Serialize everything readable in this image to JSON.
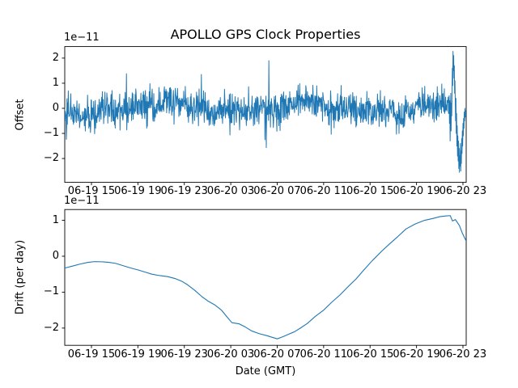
{
  "figure": {
    "background": "#ffffff",
    "frame_color": "#000000",
    "accent_line_color": "#1f77b4"
  },
  "chart_data": [
    {
      "type": "line",
      "title": "APOLLO GPS Clock Properties",
      "ylabel": "Offset",
      "xlabel": "",
      "offset_text": "1e−11",
      "unit_scale": "1e-11",
      "line_color": "#1f77b4",
      "ylim": [
        -2.95,
        2.46
      ],
      "ytick_values": [
        2,
        1,
        0,
        -1,
        -2
      ],
      "ytick_labels": [
        "2",
        "1",
        "0",
        "−1",
        "−2"
      ],
      "xlim_hours": [
        12.7,
        47.28
      ],
      "xtick_hours": [
        15,
        19,
        23,
        27,
        31,
        35,
        39,
        43,
        47
      ],
      "xtick_labels": [
        "06-19 15",
        "06-19 19",
        "06-19 23",
        "06-20 03",
        "06-20 07",
        "06-20 11",
        "06-20 15",
        "06-20 19",
        "06-20 23"
      ],
      "grid": false,
      "legend": null,
      "series": {
        "name": "clock-offset-noise",
        "style": "dense-noise",
        "n_points": 1250,
        "mean": 0,
        "std": 0.34,
        "typical_band": [
          -0.8,
          0.9
        ],
        "excursion_extremes": [
          -1.9,
          1.9
        ],
        "excursion_probability": 0.03,
        "wander_amplitudes": [
          0.16,
          0.1,
          0.07
        ],
        "wander_cycles": [
          2.7,
          6.3,
          13
        ],
        "tail_values": [
          -0.2,
          0.5,
          -0.6,
          0.3,
          -1.3,
          -0.4,
          0.6,
          -0.9,
          0.2,
          -0.3,
          0.8,
          1.6,
          0.9,
          2.27,
          1.5,
          2.1,
          1.2,
          1.7,
          0.6,
          1.1,
          0.3,
          -0.5,
          0.4,
          -1.0,
          -0.2,
          -1.5,
          -0.7,
          -1.9,
          -1.1,
          -2.1,
          -1.3,
          -2.4,
          -1.6,
          -2.55,
          -1.9,
          -2.3,
          -1.4,
          -2.5,
          -1.7,
          -2.2,
          -1.2,
          -1.8,
          -0.9,
          -1.5,
          -0.6,
          -1.1,
          -0.4,
          -0.8,
          -0.15,
          -0.5,
          0.0,
          -0.35,
          -0.1,
          -0.3,
          -0.12
        ],
        "end_spike_max": 2.27,
        "end_dip_min": -2.55
      }
    },
    {
      "type": "line",
      "title": "",
      "ylabel": "Drift (per day)",
      "xlabel": "Date (GMT)",
      "offset_text": "1e−11",
      "unit_scale": "1e-11",
      "line_color": "#1f77b4",
      "ylim": [
        -2.48,
        1.3
      ],
      "ytick_values": [
        1,
        0,
        -1,
        -2
      ],
      "ytick_labels": [
        "1",
        "0",
        "−1",
        "−2"
      ],
      "xlim_hours": [
        12.7,
        47.28
      ],
      "xtick_hours": [
        15,
        19,
        23,
        27,
        31,
        35,
        39,
        43,
        47
      ],
      "xtick_labels": [
        "06-19 15",
        "06-19 19",
        "06-19 23",
        "06-20 03",
        "06-20 07",
        "06-20 11",
        "06-20 15",
        "06-20 19",
        "06-20 23"
      ],
      "grid": false,
      "legend": null,
      "series": {
        "name": "clock-drift",
        "style": "smooth",
        "points_hours_value": [
          [
            12.7,
            -0.33
          ],
          [
            13.3,
            -0.28
          ],
          [
            14.0,
            -0.22
          ],
          [
            14.7,
            -0.17
          ],
          [
            15.3,
            -0.15
          ],
          [
            15.9,
            -0.155
          ],
          [
            16.5,
            -0.17
          ],
          [
            17.1,
            -0.2
          ],
          [
            17.8,
            -0.27
          ],
          [
            18.4,
            -0.33
          ],
          [
            19.0,
            -0.38
          ],
          [
            19.6,
            -0.44
          ],
          [
            20.2,
            -0.5
          ],
          [
            20.9,
            -0.54
          ],
          [
            21.6,
            -0.57
          ],
          [
            22.2,
            -0.62
          ],
          [
            22.8,
            -0.7
          ],
          [
            23.3,
            -0.8
          ],
          [
            23.9,
            -0.95
          ],
          [
            24.5,
            -1.12
          ],
          [
            25.0,
            -1.24
          ],
          [
            25.6,
            -1.35
          ],
          [
            26.2,
            -1.5
          ],
          [
            26.7,
            -1.7
          ],
          [
            27.1,
            -1.85
          ],
          [
            27.7,
            -1.88
          ],
          [
            28.2,
            -1.96
          ],
          [
            28.8,
            -2.08
          ],
          [
            29.5,
            -2.16
          ],
          [
            30.1,
            -2.21
          ],
          [
            30.6,
            -2.26
          ],
          [
            31.0,
            -2.3
          ],
          [
            31.5,
            -2.24
          ],
          [
            32.0,
            -2.17
          ],
          [
            32.5,
            -2.1
          ],
          [
            33.0,
            -2.0
          ],
          [
            33.6,
            -1.87
          ],
          [
            34.3,
            -1.67
          ],
          [
            35.0,
            -1.5
          ],
          [
            35.7,
            -1.28
          ],
          [
            36.4,
            -1.08
          ],
          [
            37.1,
            -0.85
          ],
          [
            37.8,
            -0.63
          ],
          [
            38.5,
            -0.37
          ],
          [
            39.2,
            -0.12
          ],
          [
            40.0,
            0.14
          ],
          [
            40.7,
            0.35
          ],
          [
            41.4,
            0.55
          ],
          [
            42.1,
            0.76
          ],
          [
            42.9,
            0.9
          ],
          [
            43.7,
            1.0
          ],
          [
            44.4,
            1.05
          ],
          [
            45.0,
            1.1
          ],
          [
            45.5,
            1.12
          ],
          [
            45.9,
            1.13
          ],
          [
            46.1,
            0.98
          ],
          [
            46.35,
            1.02
          ],
          [
            46.7,
            0.85
          ],
          [
            46.95,
            0.64
          ],
          [
            47.28,
            0.42
          ]
        ]
      }
    }
  ]
}
